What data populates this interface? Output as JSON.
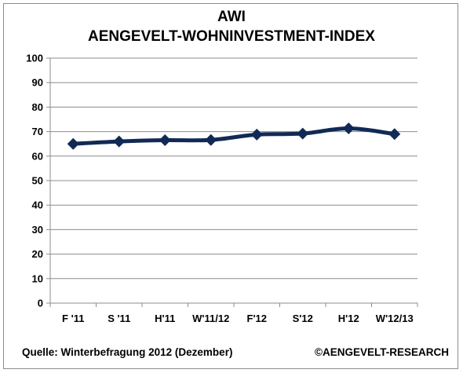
{
  "chart_data": {
    "type": "line",
    "title": "AWI",
    "subtitle": "AENGEVELT-WOHNINVESTMENT-INDEX",
    "xlabel": "",
    "ylabel": "",
    "categories": [
      "F '11",
      "S '11",
      "H'11",
      "W'11/12",
      "F'12",
      "S'12",
      "H'12",
      "W'12/13"
    ],
    "series": [
      {
        "values": [
          65.0,
          66.0,
          66.5,
          66.6,
          68.8,
          69.2,
          71.3,
          69.0
        ],
        "color": "#112a55"
      }
    ],
    "ylim": [
      0,
      100
    ],
    "yticks": [
      0,
      10,
      20,
      30,
      40,
      50,
      60,
      70,
      80,
      90,
      100
    ],
    "grid": true,
    "legend": "none"
  },
  "footer": {
    "source": "Quelle: Winterbefragung 2012 (Dezember)",
    "copyright": "©AENGEVELT-RESEARCH"
  },
  "colors": {
    "line": "#112a55",
    "grid": "#8c8c8c",
    "axis": "#8c8c8c"
  }
}
